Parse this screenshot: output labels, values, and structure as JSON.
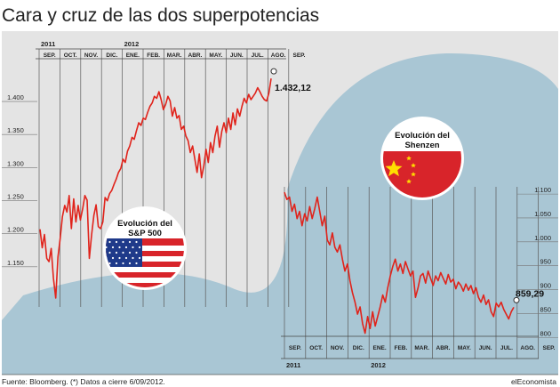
{
  "header": {
    "title": "Cara y cruz de las dos superpotencias"
  },
  "footer": {
    "source": "Fuente: Bloomberg. (*) Datos a cierre 6/09/2012.",
    "brand": "elEconomista"
  },
  "colors": {
    "line": "#e0231b",
    "left_panel": "#e4e4e4",
    "right_panel": "#a9c6d4",
    "grid": "#555555",
    "us_blue": "#1f3a8a",
    "us_red": "#d8242a",
    "cn_red": "#d8242a",
    "cn_star": "#ffde00"
  },
  "chart_data": [
    {
      "type": "line",
      "name": "sp500",
      "badge_label": "Evolución del S&P 500",
      "flag": "usa-flag",
      "years": [
        {
          "label": "2011",
          "at": "SEP."
        },
        {
          "label": "2012",
          "at": "ENE."
        }
      ],
      "months": [
        "SEP.",
        "OCT.",
        "NOV.",
        "DIC.",
        "ENE.",
        "FEB.",
        "MAR.",
        "ABR.",
        "MAY.",
        "JUN.",
        "JUL.",
        "AGO.",
        "SEP."
      ],
      "ylim": [
        1100,
        1470
      ],
      "ytick_labels": [
        "1.400",
        "1.350",
        "1.300",
        "1.250",
        "1.200",
        "1.150"
      ],
      "ytick_values": [
        1400,
        1350,
        1300,
        1250,
        1200,
        1150
      ],
      "end_label": "1.432,12",
      "end_value": 1432.12,
      "values": [
        1204,
        1176,
        1196,
        1160,
        1155,
        1175,
        1130,
        1100,
        1162,
        1190,
        1223,
        1240,
        1230,
        1255,
        1205,
        1250,
        1215,
        1240,
        1218,
        1235,
        1255,
        1248,
        1160,
        1196,
        1225,
        1241,
        1208,
        1205,
        1215,
        1252,
        1247,
        1258,
        1263,
        1272,
        1280,
        1290,
        1296,
        1310,
        1305,
        1322,
        1330,
        1343,
        1340,
        1353,
        1365,
        1361,
        1372,
        1370,
        1381,
        1390,
        1395,
        1405,
        1402,
        1412,
        1400,
        1385,
        1393,
        1405,
        1398,
        1375,
        1388,
        1372,
        1376,
        1355,
        1360,
        1345,
        1338,
        1320,
        1330,
        1310,
        1290,
        1318,
        1282,
        1300,
        1325,
        1305,
        1335,
        1320,
        1345,
        1360,
        1328,
        1352,
        1365,
        1350,
        1372,
        1355,
        1380,
        1362,
        1386,
        1375,
        1390,
        1402,
        1395,
        1408,
        1400,
        1405,
        1410,
        1418,
        1412,
        1405,
        1400,
        1398,
        1410,
        1432.12
      ]
    },
    {
      "type": "line",
      "name": "shenzhen",
      "badge_label": "Evolución del Shenzen",
      "flag": "china-flag",
      "years": [
        {
          "label": "2011",
          "at": "SEP."
        },
        {
          "label": "2012",
          "at": "ENE."
        }
      ],
      "months": [
        "SEP.",
        "OCT.",
        "NOV.",
        "DIC.",
        "ENE.",
        "FEB.",
        "MAR.",
        "ABR.",
        "MAY.",
        "JUN.",
        "JUL.",
        "AGO.",
        "SEP."
      ],
      "ylim": [
        780,
        1130
      ],
      "ytick_labels": [
        "1.100",
        "1.050",
        "1.000",
        "950",
        "900",
        "850",
        "800"
      ],
      "ytick_values": [
        1100,
        1050,
        1000,
        950,
        900,
        850,
        800
      ],
      "end_label": "859,29",
      "end_value": 859.29,
      "values": [
        1100,
        1085,
        1090,
        1060,
        1075,
        1045,
        1060,
        1030,
        1055,
        1040,
        1070,
        1045,
        1065,
        1090,
        1060,
        1030,
        1050,
        1000,
        990,
        1015,
        985,
        975,
        990,
        960,
        935,
        950,
        915,
        890,
        870,
        845,
        860,
        825,
        805,
        840,
        815,
        850,
        820,
        840,
        860,
        885,
        870,
        900,
        925,
        945,
        960,
        935,
        950,
        930,
        955,
        940,
        925,
        935,
        880,
        900,
        925,
        930,
        910,
        935,
        920,
        905,
        925,
        915,
        932,
        920,
        908,
        928,
        912,
        918,
        898,
        912,
        905,
        893,
        908,
        895,
        905,
        888,
        900,
        880,
        870,
        885,
        865,
        875,
        850,
        840,
        868,
        860,
        870,
        855,
        845,
        835,
        850,
        859.29
      ]
    }
  ]
}
